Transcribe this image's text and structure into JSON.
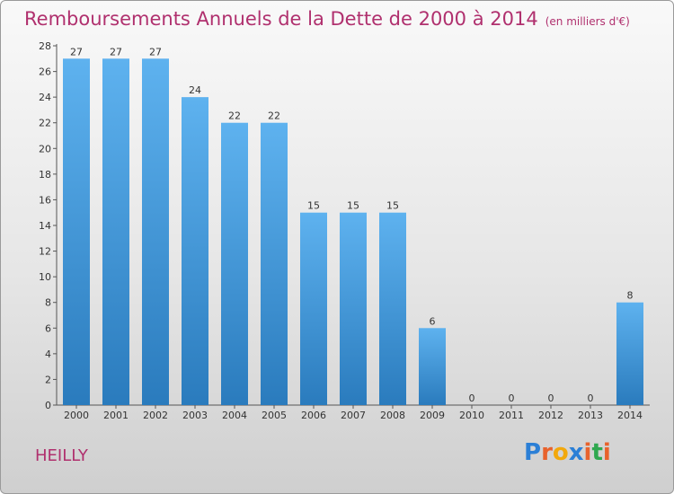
{
  "title": "Remboursements Annuels de la Dette de 2000 à 2014",
  "unit_label": "(en milliers d'€)",
  "commune": "HEILLY",
  "logo": {
    "text": "Proxiti",
    "letter_colors": [
      "#2b7fd6",
      "#e8622c",
      "#f2a80c",
      "#2b7fd6",
      "#e8622c",
      "#2fa84f",
      "#e8622c"
    ]
  },
  "chart_data": {
    "type": "bar",
    "title": "Remboursements Annuels de la Dette de 2000 à 2014",
    "ylabel": "en milliers d'€",
    "xlabel": "",
    "categories": [
      "2000",
      "2001",
      "2002",
      "2003",
      "2004",
      "2005",
      "2006",
      "2007",
      "2008",
      "2009",
      "2010",
      "2011",
      "2012",
      "2013",
      "2014"
    ],
    "values": [
      27,
      27,
      27,
      24,
      22,
      22,
      15,
      15,
      15,
      6,
      0,
      0,
      0,
      0,
      8
    ],
    "ylim": [
      0,
      28
    ],
    "yticks": [
      0,
      2,
      4,
      6,
      8,
      10,
      12,
      14,
      16,
      18,
      20,
      22,
      24,
      26,
      28
    ],
    "grid": false,
    "bar_color_top": "#5eb2ef",
    "bar_color_bottom": "#2a7bbd"
  }
}
